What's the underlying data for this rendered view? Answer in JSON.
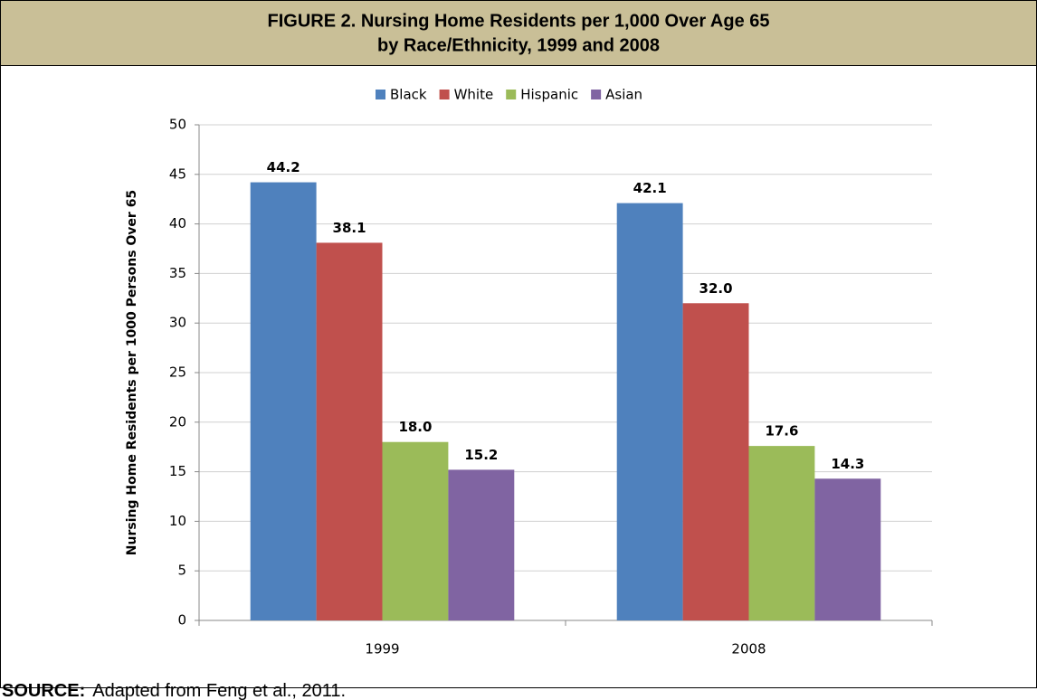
{
  "chart_data": {
    "type": "bar",
    "title": [
      "FIGURE 2. Nursing Home Residents per 1,000 Over Age 65",
      "by Race/Ethnicity, 1999 and 2008"
    ],
    "y_label": "Nursing Home Residents per 1000 Persons Over 65",
    "categories": [
      "1999",
      "2008"
    ],
    "series": [
      {
        "name": "Black",
        "color": "#4f81bd",
        "values": [
          44.2,
          42.1
        ],
        "value_labels": [
          "44.2",
          "42.1"
        ]
      },
      {
        "name": "White",
        "color": "#c0504d",
        "values": [
          38.1,
          32
        ],
        "value_labels": [
          "38.1",
          "32.0"
        ]
      },
      {
        "name": "Hispanic",
        "color": "#9bbb59",
        "values": [
          18,
          17.6
        ],
        "value_labels": [
          "18.0",
          "17.6"
        ]
      },
      {
        "name": "Asian",
        "color": "#8064a2",
        "values": [
          15.2,
          14.3
        ],
        "value_labels": [
          "15.2",
          "14.3"
        ]
      }
    ],
    "ylim": [
      0,
      50
    ],
    "yticks": [
      0,
      5,
      10,
      15,
      20,
      25,
      30,
      35,
      40,
      45,
      50
    ],
    "grid": true,
    "legend": "top"
  },
  "source": {
    "label": "SOURCE:",
    "text": "Adapted from Feng et al., 2011."
  }
}
